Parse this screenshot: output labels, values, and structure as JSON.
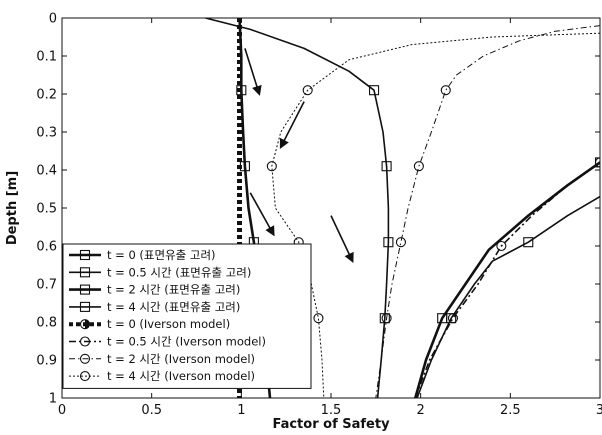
{
  "chart_data": {
    "type": "line",
    "title": "",
    "xlabel": "Factor of Safety",
    "ylabel": "Depth [m]",
    "xlim": [
      0,
      3
    ],
    "ylim": [
      0,
      1
    ],
    "y_inverted": true,
    "xticks": [
      "0",
      "0.5",
      "1",
      "1.5",
      "2",
      "2.5",
      "3"
    ],
    "yticks": [
      "0",
      "0.1",
      "0.2",
      "0.3",
      "0.4",
      "0.5",
      "0.6",
      "0.7",
      "0.8",
      "0.9",
      "1"
    ],
    "grid": false,
    "legend_position": "bottom-left",
    "series": [
      {
        "name": "t = 0 (표면유출 고려)",
        "style": "solid-thick",
        "marker": "square",
        "points": [
          [
            0.99,
            0
          ],
          [
            1.0,
            0.1
          ],
          [
            1.0,
            0.19
          ],
          [
            1.01,
            0.3
          ],
          [
            1.02,
            0.39
          ],
          [
            1.04,
            0.5
          ],
          [
            1.07,
            0.59
          ],
          [
            1.1,
            0.7
          ],
          [
            1.12,
            0.79
          ],
          [
            1.14,
            0.9
          ],
          [
            1.16,
            1.0
          ]
        ]
      },
      {
        "name": "t = 0.5 시간 (표면유출 고려)",
        "style": "solid",
        "marker": "square",
        "points": [
          [
            0.8,
            0
          ],
          [
            1.05,
            0.03
          ],
          [
            1.35,
            0.08
          ],
          [
            1.6,
            0.14
          ],
          [
            1.74,
            0.19
          ],
          [
            1.79,
            0.3
          ],
          [
            1.81,
            0.39
          ],
          [
            1.82,
            0.5
          ],
          [
            1.82,
            0.59
          ],
          [
            1.81,
            0.7
          ],
          [
            1.8,
            0.79
          ],
          [
            1.78,
            0.9
          ],
          [
            1.76,
            1.0
          ]
        ]
      },
      {
        "name": "t = 2 시간 (표면유출 고려)",
        "style": "solid-thick",
        "marker": "square",
        "points": [
          [
            1.97,
            1.0
          ],
          [
            2.03,
            0.9
          ],
          [
            2.12,
            0.79
          ],
          [
            2.25,
            0.7
          ],
          [
            2.38,
            0.61
          ],
          [
            2.6,
            0.52
          ],
          [
            2.82,
            0.44
          ],
          [
            3.0,
            0.38
          ]
        ]
      },
      {
        "name": "t = 4 시간 (표면유출 고려)",
        "style": "solid",
        "marker": "square",
        "points": [
          [
            1.98,
            1.0
          ],
          [
            2.06,
            0.9
          ],
          [
            2.17,
            0.79
          ],
          [
            2.3,
            0.7
          ],
          [
            2.4,
            0.64
          ],
          [
            2.6,
            0.59
          ],
          [
            2.82,
            0.52
          ],
          [
            3.0,
            0.47
          ]
        ]
      },
      {
        "name": "t = 0 (Iverson model)",
        "style": "dotted-thick",
        "marker": "circle-half",
        "points": [
          [
            0.99,
            0
          ],
          [
            0.99,
            0.2
          ],
          [
            0.99,
            0.4
          ],
          [
            0.99,
            0.6
          ],
          [
            0.99,
            0.8
          ],
          [
            0.99,
            1.0
          ]
        ]
      },
      {
        "name": "t = 0.5 시간 (Iverson model)",
        "style": "dashdot",
        "marker": "circle",
        "points": [
          [
            1.97,
            1.0
          ],
          [
            2.05,
            0.9
          ],
          [
            2.18,
            0.79
          ],
          [
            2.32,
            0.7
          ],
          [
            2.45,
            0.6
          ],
          [
            2.62,
            0.52
          ],
          [
            2.82,
            0.44
          ],
          [
            3.0,
            0.38
          ]
        ]
      },
      {
        "name": "t = 2 시간 (Iverson model)",
        "style": "dashdot-thin",
        "marker": "circle",
        "points": [
          [
            3.0,
            0.02
          ],
          [
            2.75,
            0.035
          ],
          [
            2.55,
            0.06
          ],
          [
            2.35,
            0.1
          ],
          [
            2.2,
            0.15
          ],
          [
            2.14,
            0.19
          ],
          [
            2.06,
            0.3
          ],
          [
            1.99,
            0.39
          ],
          [
            1.93,
            0.5
          ],
          [
            1.89,
            0.59
          ],
          [
            1.84,
            0.7
          ],
          [
            1.81,
            0.79
          ],
          [
            1.78,
            0.9
          ],
          [
            1.75,
            1.0
          ]
        ]
      },
      {
        "name": "t = 4 시간 (Iverson model)",
        "style": "dotted-thin",
        "marker": "circle",
        "points": [
          [
            3.0,
            0.04
          ],
          [
            2.4,
            0.05
          ],
          [
            1.95,
            0.07
          ],
          [
            1.6,
            0.11
          ],
          [
            1.37,
            0.19
          ],
          [
            1.22,
            0.3
          ],
          [
            1.17,
            0.39
          ],
          [
            1.19,
            0.5
          ],
          [
            1.32,
            0.59
          ],
          [
            1.39,
            0.7
          ],
          [
            1.43,
            0.79
          ],
          [
            1.45,
            0.9
          ],
          [
            1.46,
            1.0
          ]
        ]
      }
    ],
    "annotations": [
      {
        "type": "arrow",
        "from": [
          1.02,
          0.08
        ],
        "to": [
          1.1,
          0.2
        ]
      },
      {
        "type": "arrow",
        "from": [
          1.35,
          0.22
        ],
        "to": [
          1.22,
          0.34
        ]
      },
      {
        "type": "arrow",
        "from": [
          1.05,
          0.46
        ],
        "to": [
          1.18,
          0.57
        ]
      },
      {
        "type": "arrow",
        "from": [
          1.5,
          0.52
        ],
        "to": [
          1.62,
          0.64
        ]
      }
    ]
  }
}
